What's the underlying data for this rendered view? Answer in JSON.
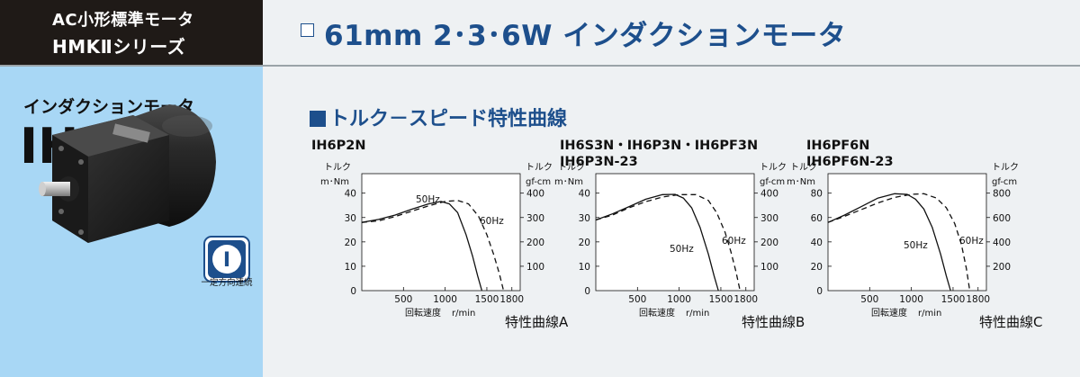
{
  "series": {
    "line1": "AC小形標準モータ",
    "line2": "HMKⅡシリーズ"
  },
  "header": {
    "title": "61mm 2･3･6W インダクションモータ"
  },
  "left_panel": {
    "kind": "インダクションモータ",
    "code": "IH",
    "badge_label": "一定方向連続",
    "badge_symbol": "I"
  },
  "section_title": "トルク－スピード特性曲線",
  "chart_data": [
    {
      "type": "line",
      "models": [
        "IH6P2N"
      ],
      "caption": "特性曲線A",
      "ylabel_left": [
        "トルク",
        "m･Nm"
      ],
      "ylabel_right": [
        "トルク",
        "gf-cm"
      ],
      "xlabel": "回転速度",
      "xunit": "r/min",
      "xlim": [
        0,
        1900
      ],
      "ylim": [
        0,
        48
      ],
      "xticks": [
        500,
        1000,
        1500,
        1800
      ],
      "yticks_left": [
        0,
        10,
        20,
        30,
        40
      ],
      "yticks_right": [
        100,
        200,
        300,
        400
      ],
      "yticks_right_pos": [
        10,
        20,
        30,
        40
      ],
      "series": [
        {
          "name": "50Hz",
          "style": "solid",
          "x": [
            0,
            200,
            400,
            600,
            800,
            950,
            1050,
            1150,
            1250,
            1330,
            1390,
            1440
          ],
          "y": [
            28,
            29.2,
            31,
            33.4,
            35.6,
            36.6,
            35.6,
            32,
            23,
            14,
            6,
            0
          ]
        },
        {
          "name": "60Hz",
          "style": "dashed",
          "x": [
            0,
            200,
            400,
            600,
            800,
            1000,
            1150,
            1280,
            1400,
            1500,
            1580,
            1650,
            1700
          ],
          "y": [
            28,
            28.6,
            30.4,
            32.6,
            34.8,
            36.6,
            37,
            35.6,
            30.5,
            23,
            15,
            7,
            0
          ]
        }
      ]
    },
    {
      "type": "line",
      "models": [
        "IH6S3N・IH6P3N・IH6PF3N",
        "IH6P3N-23"
      ],
      "caption": "特性曲線B",
      "ylabel_left": [
        "トルク",
        "m･Nm"
      ],
      "ylabel_right": [
        "トルク",
        "gf-cm"
      ],
      "xlabel": "回転速度",
      "xunit": "r/min",
      "xlim": [
        0,
        1900
      ],
      "ylim": [
        0,
        48
      ],
      "xticks": [
        500,
        1000,
        1500,
        1800
      ],
      "yticks_left": [
        0,
        10,
        20,
        30,
        40
      ],
      "yticks_right": [
        100,
        200,
        300,
        400
      ],
      "yticks_right_pos": [
        10,
        20,
        30,
        40
      ],
      "series": [
        {
          "name": "50Hz",
          "style": "solid",
          "x": [
            0,
            200,
            400,
            600,
            800,
            950,
            1050,
            1150,
            1250,
            1350,
            1420,
            1470
          ],
          "y": [
            29,
            31.5,
            34.5,
            37.5,
            39.4,
            39.5,
            38,
            34,
            26,
            15,
            6,
            0
          ]
        },
        {
          "name": "60Hz",
          "style": "dashed",
          "x": [
            0,
            200,
            400,
            600,
            800,
            1000,
            1200,
            1350,
            1450,
            1550,
            1620,
            1680,
            1730
          ],
          "y": [
            29,
            31,
            34,
            36.5,
            38.4,
            39.4,
            39.4,
            37,
            32,
            24,
            16,
            8,
            0
          ]
        }
      ]
    },
    {
      "type": "line",
      "models": [
        "IH6PF6N",
        "IH6PF6N-23"
      ],
      "caption": "特性曲線C",
      "ylabel_left": [
        "トルク",
        "m･Nm"
      ],
      "ylabel_right": [
        "トルク",
        "gf-cm"
      ],
      "xlabel": "回転速度",
      "xunit": "r/min",
      "xlim": [
        0,
        1900
      ],
      "ylim": [
        0,
        96
      ],
      "xticks": [
        500,
        1000,
        1500,
        1800
      ],
      "yticks_left": [
        0,
        20,
        40,
        60,
        80
      ],
      "yticks_right": [
        200,
        400,
        600,
        800
      ],
      "yticks_right_pos": [
        20,
        40,
        60,
        80
      ],
      "series": [
        {
          "name": "50Hz",
          "style": "solid",
          "x": [
            0,
            200,
            400,
            600,
            800,
            950,
            1050,
            1150,
            1250,
            1350,
            1420,
            1470
          ],
          "y": [
            56,
            62,
            69,
            76,
            79.5,
            79,
            75,
            67,
            52,
            30,
            12,
            0
          ]
        },
        {
          "name": "60Hz",
          "style": "dashed",
          "x": [
            0,
            200,
            400,
            600,
            800,
            1000,
            1150,
            1300,
            1420,
            1520,
            1600,
            1660,
            1700
          ],
          "y": [
            56,
            61,
            66.5,
            72,
            76.5,
            79,
            79.5,
            76,
            68,
            55,
            38,
            18,
            0
          ]
        }
      ]
    }
  ]
}
